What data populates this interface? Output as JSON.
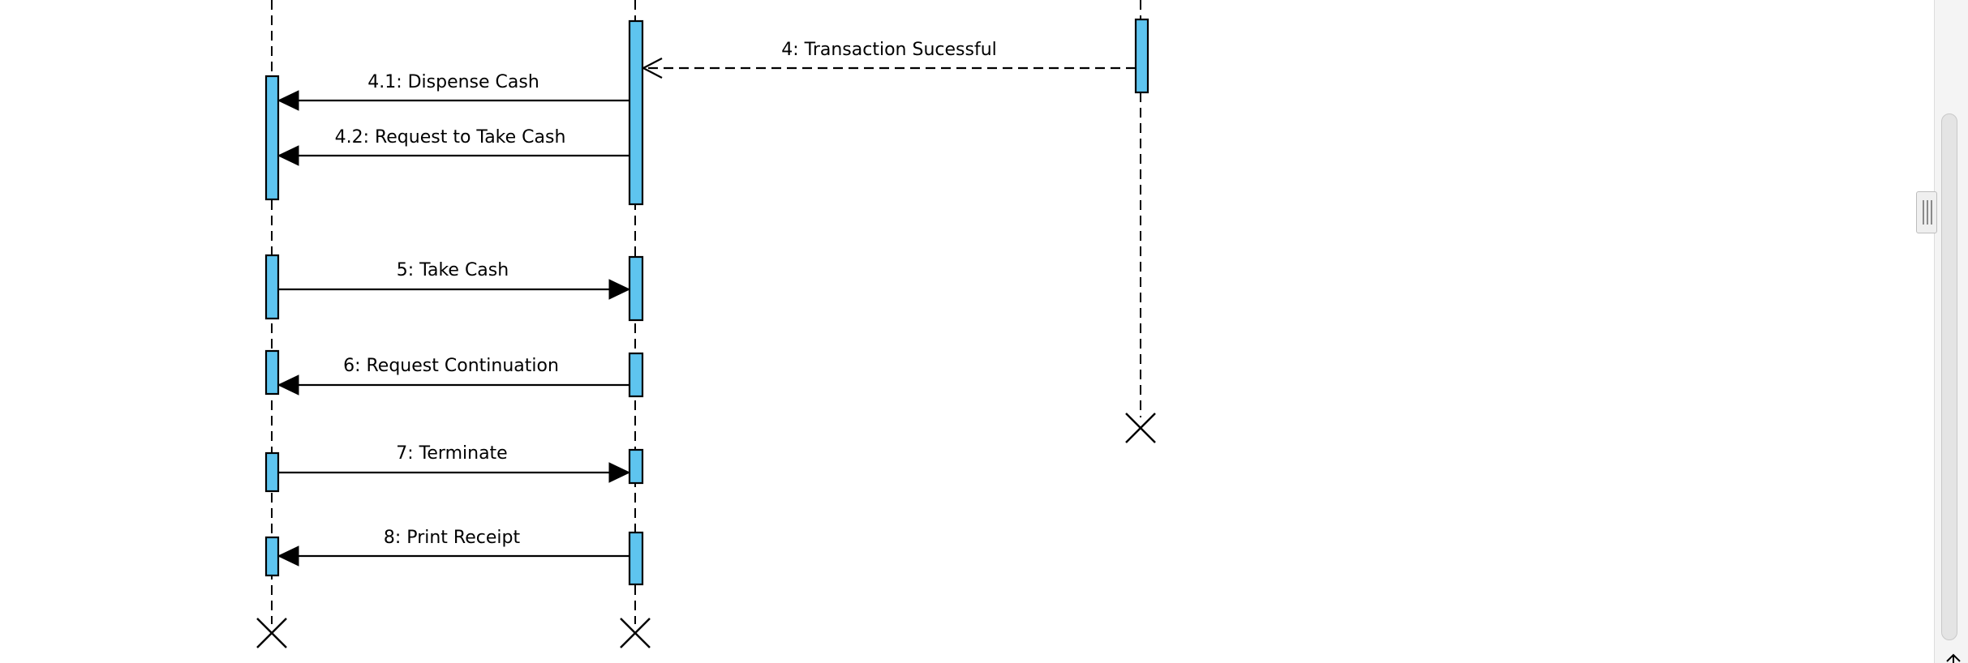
{
  "diagram": {
    "type": "sequence",
    "messages": [
      {
        "label": "4: Transaction Sucessful",
        "kind": "reply"
      },
      {
        "label": "4.1: Dispense Cash",
        "kind": "sync"
      },
      {
        "label": "4.2: Request to Take Cash",
        "kind": "sync"
      },
      {
        "label": "5: Take Cash",
        "kind": "sync"
      },
      {
        "label": "6: Request Continuation",
        "kind": "sync"
      },
      {
        "label": "7: Terminate",
        "kind": "sync"
      },
      {
        "label": "8: Print Receipt",
        "kind": "sync"
      }
    ],
    "colors": {
      "activation_fill": "#5ec4ef",
      "line": "#000000",
      "background": "#ffffff"
    }
  },
  "icons": {
    "splitter": "splitter-grip-icon",
    "corner": "scroll-corner-icon"
  }
}
